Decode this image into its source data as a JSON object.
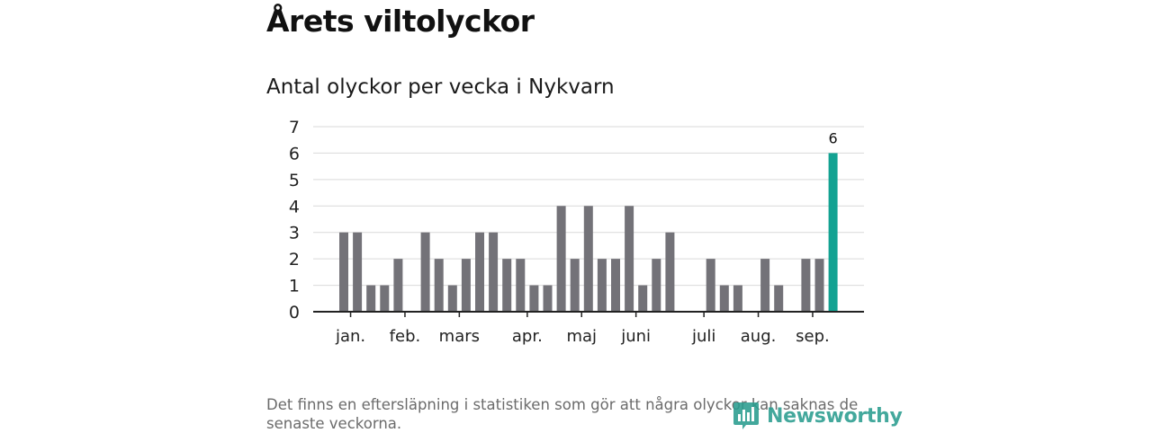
{
  "title": "Årets viltolyckor",
  "subtitle": "Antal olyckor per vecka i Nykvarn",
  "footnote": "Det finns en eftersläpning i statistiken som gör att några olyckor kan saknas de senaste veckorna.",
  "brand": {
    "name": "Newsworthy",
    "icon": "newsworthy-logo-icon",
    "color": "#2a9d8f"
  },
  "chart_data": {
    "type": "bar",
    "title": "Antal olyckor per vecka i Nykvarn",
    "xlabel": "",
    "ylabel": "",
    "weeks": [
      1,
      2,
      3,
      4,
      5,
      6,
      7,
      8,
      9,
      10,
      11,
      12,
      13,
      14,
      15,
      16,
      17,
      18,
      19,
      20,
      21,
      22,
      23,
      24,
      25,
      26,
      27,
      28,
      29,
      30,
      31,
      32,
      33,
      34,
      35,
      36,
      37
    ],
    "values": [
      3,
      3,
      1,
      1,
      2,
      0,
      3,
      2,
      1,
      2,
      3,
      3,
      2,
      2,
      1,
      1,
      4,
      2,
      4,
      2,
      2,
      4,
      1,
      2,
      3,
      0,
      0,
      2,
      1,
      1,
      0,
      2,
      1,
      0,
      2,
      2,
      6
    ],
    "ylim": [
      0,
      7
    ],
    "yticks": [
      "0",
      "1",
      "2",
      "3",
      "4",
      "5",
      "6",
      "7"
    ],
    "month_labels": [
      {
        "label": "jan.",
        "week": 1.5
      },
      {
        "label": "feb.",
        "week": 5.5
      },
      {
        "label": "mars",
        "week": 9.5
      },
      {
        "label": "apr.",
        "week": 14.5
      },
      {
        "label": "maj",
        "week": 18.5
      },
      {
        "label": "juni",
        "week": 22.5
      },
      {
        "label": "juli",
        "week": 27.5
      },
      {
        "label": "aug.",
        "week": 31.5
      },
      {
        "label": "sep.",
        "week": 35.5
      }
    ],
    "month_ticks": [
      1.5,
      5.5,
      9.5,
      14.5,
      18.5,
      22.5,
      27.5,
      31.5,
      35.5
    ],
    "highlight": {
      "week": 37,
      "value": 6,
      "label": "6",
      "color": "#13a292"
    },
    "bar_color": "#737278",
    "grid": true
  }
}
